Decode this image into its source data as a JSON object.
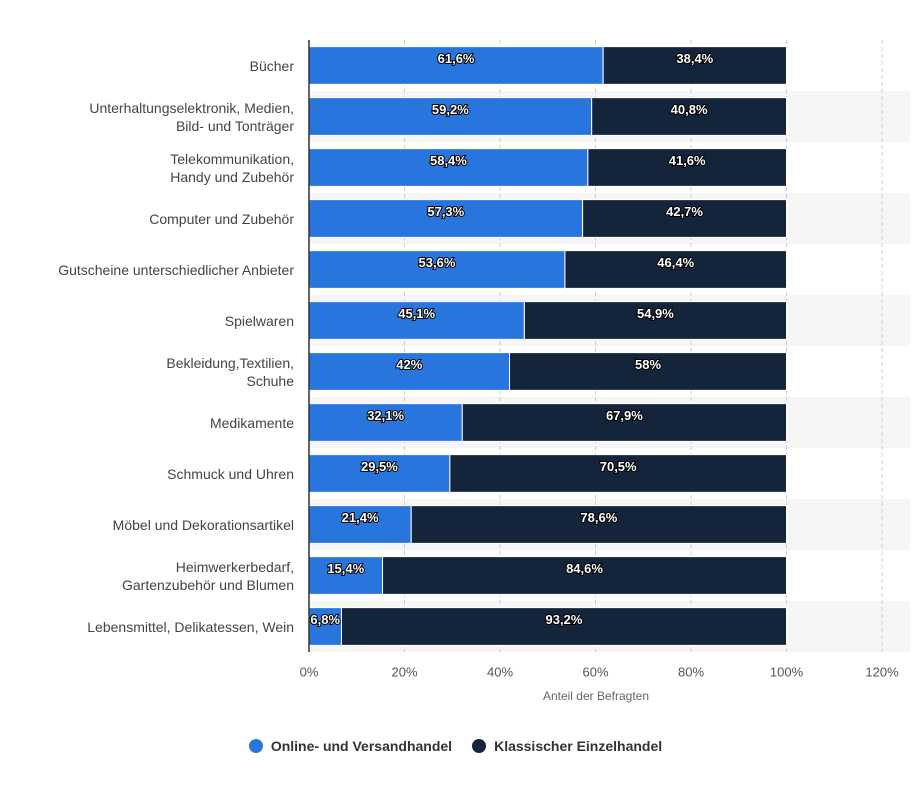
{
  "chart_data": {
    "type": "stacked-bar-horizontal",
    "categories": [
      "Bücher",
      "Unterhaltungselektronik, Medien,\nBild- und Tonträger",
      "Telekommunikation,\nHandy und Zubehör",
      "Computer und Zubehör",
      "Gutscheine unterschiedlicher Anbieter",
      "Spielwaren",
      "Bekleidung,Textilien,\nSchuhe",
      "Medikamente",
      "Schmuck und Uhren",
      "Möbel und Dekorationsartikel",
      "Heimwerkerbedarf,\nGartenzubehör und Blumen",
      "Lebensmittel, Delikatessen, Wein"
    ],
    "series": [
      {
        "name": "Online- und Versandhandel",
        "color": "#2876dd",
        "values": [
          61.6,
          59.2,
          58.4,
          57.3,
          53.6,
          45.1,
          42,
          32.1,
          29.5,
          21.4,
          15.4,
          6.8
        ],
        "value_labels": [
          "61,6%",
          "59,2%",
          "58,4%",
          "57,3%",
          "53,6%",
          "45,1%",
          "42%",
          "32,1%",
          "29,5%",
          "21,4%",
          "15,4%",
          "6,8%"
        ]
      },
      {
        "name": "Klassischer Einzelhandel",
        "color": "#14253b",
        "values": [
          38.4,
          40.8,
          41.6,
          42.7,
          46.4,
          54.9,
          58,
          67.9,
          70.5,
          78.6,
          84.6,
          93.2
        ],
        "value_labels": [
          "38,4%",
          "40,8%",
          "41,6%",
          "42,7%",
          "46,4%",
          "54,9%",
          "58%",
          "67,9%",
          "70,5%",
          "78,6%",
          "84,6%",
          "93,2%"
        ]
      }
    ],
    "x_label": "Anteil der Befragten",
    "xlim": [
      0,
      120
    ],
    "xticks": [
      {
        "value": 0,
        "label": "0%"
      },
      {
        "value": 20,
        "label": "20%"
      },
      {
        "value": 40,
        "label": "40%"
      },
      {
        "value": 60,
        "label": "60%"
      },
      {
        "value": 80,
        "label": "80%"
      },
      {
        "value": 100,
        "label": "100%"
      },
      {
        "value": 120,
        "label": "120%"
      }
    ],
    "grid": true
  }
}
